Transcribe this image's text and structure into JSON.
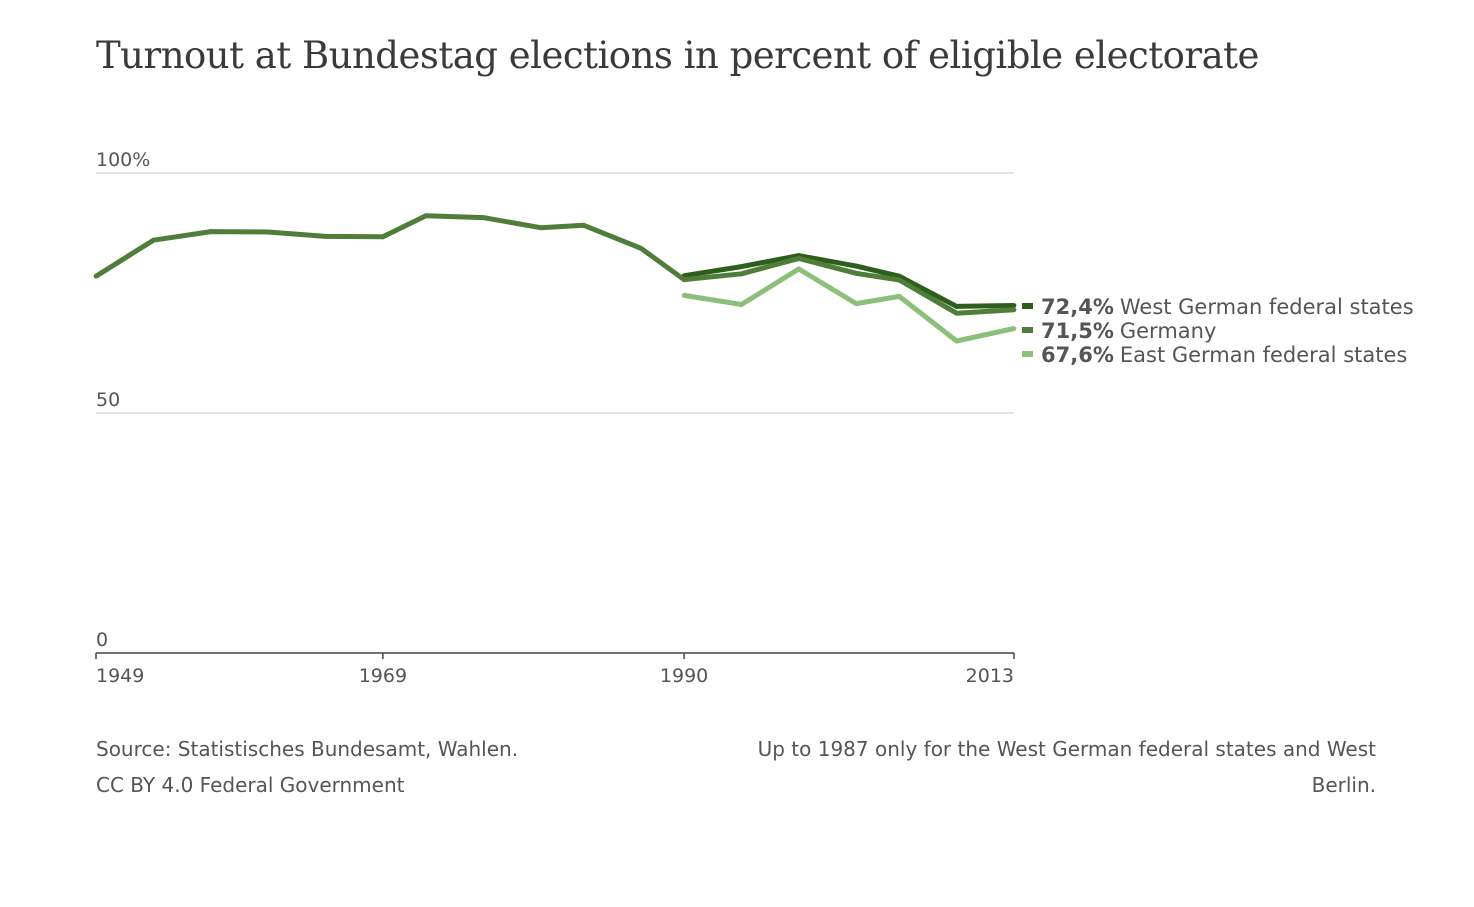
{
  "chart_data": {
    "type": "line",
    "title": "Turnout at Bundestag elections in percent of eligible electorate",
    "xlim": [
      1949,
      2013
    ],
    "ylim": [
      0,
      100
    ],
    "x_ticks": [
      1949,
      1969,
      1990,
      2013
    ],
    "y_ticks": [
      {
        "value": 100,
        "label": "100%"
      },
      {
        "value": 50,
        "label": "50"
      },
      {
        "value": 0,
        "label": "0"
      }
    ],
    "grid": true,
    "legend_position": "right",
    "series": [
      {
        "name": "West German federal states",
        "value_label": "72,4%",
        "color": "#2e5e1b",
        "x": [
          1990,
          1994,
          1998,
          2002,
          2005,
          2009,
          2013
        ],
        "y": [
          78.6,
          80.5,
          82.8,
          80.6,
          78.5,
          72.2,
          72.4
        ]
      },
      {
        "name": "Germany",
        "value_label": "71,5%",
        "color": "#4f7d3a",
        "x": [
          1949,
          1953,
          1957,
          1961,
          1965,
          1969,
          1972,
          1976,
          1980,
          1983,
          1987,
          1990,
          1994,
          1998,
          2002,
          2005,
          2009,
          2013
        ],
        "y": [
          78.5,
          86.0,
          87.8,
          87.7,
          86.8,
          86.7,
          91.1,
          90.7,
          88.6,
          89.1,
          84.3,
          77.8,
          79.0,
          82.2,
          79.1,
          77.7,
          70.8,
          71.5
        ]
      },
      {
        "name": "East German federal states",
        "value_label": "67,6%",
        "color": "#8cc07a",
        "x": [
          1990,
          1994,
          1998,
          2002,
          2005,
          2009,
          2013
        ],
        "y": [
          74.5,
          72.6,
          80.0,
          72.8,
          74.3,
          65.0,
          67.6
        ]
      }
    ]
  },
  "footer": {
    "source_line1": "Source: Statistisches Bundesamt, Wahlen.",
    "source_line2": "CC BY 4.0 Federal Government",
    "note_line1": "Up to 1987 only for the West German federal states and West",
    "note_line2": "Berlin."
  }
}
